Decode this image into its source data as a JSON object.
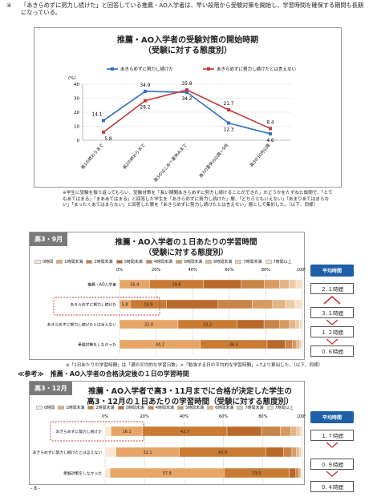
{
  "intro": {
    "number": "④",
    "text": "「あきらめずに努力し続けた」と回答している推薦・AO入学者は、早い段階から受験対策を開始し、学習時間を確保する期間も長期になっている。"
  },
  "chart1": {
    "title": "推薦・AO入学者の受験対策の開始時期",
    "subtitle": "（受験に対する態度別）",
    "unit": "(%)"
  },
  "note1": {
    "lines": [
      "※学生に受験を振り返ってもらい、受験対策を「長い期間あきらめずに努力し続けることができた」かどうかをたずねた設問で、「とてもあてはまる」「まああてはまる」と回答した学生を「あきらめずに努力し続けた」層、「どちらともいえない」「あまりあてはまらない」「まったくあてはまらない」と回答した層を「あきらめずに努力し続けたとは言えない」層として集計した。（以下、同様）"
    ]
  },
  "panel2": {
    "label": "高3・9月",
    "title": "推薦・AO入学者の１日あたりの学習時間",
    "subtitle": "（受験に対する態度別）",
    "avg_header": "平均時間",
    "avg_values": [
      "２.１時間",
      "３.１時間",
      "１.２時間",
      "０.６時間"
    ]
  },
  "note2": "※「1日あたりの学習時間」は「週の平均的な学習日数」×「勉強する日の平均的な学習時間」÷7より算出した。（以下、同様）",
  "ref_title": "≪参考≫　推薦・AO入学者の合格決定後の１日の学習時間",
  "panel3": {
    "label": "高3・12月",
    "title_line1": "推薦・AO入学者で高3・11月までに合格が決定した学生の",
    "title_line2": "高3・12月の１日あたりの学習時間（受験に対する態度別）",
    "avg_header": "平均時間",
    "avg_values": [
      "１.７時間",
      "０.９時間",
      "０.４時間"
    ]
  },
  "footer": "- 8 -",
  "chart_data": [
    {
      "type": "line",
      "title": "推薦・AO入学者の受験対策の開始時期",
      "subtitle": "（受験に対する態度別）",
      "ylabel": "(%)",
      "ylim": [
        0,
        40
      ],
      "y_ticks": [
        0,
        10,
        20,
        30,
        40
      ],
      "legend_position": "top",
      "categories": [
        "高1の終わりまで",
        "高2の終わりまで",
        "高3のはじめ〜夏休みまで",
        "高3の夏休み以降〜9月",
        "高3の10月以降"
      ],
      "series": [
        {
          "name": "あきらめずに努力し続けた",
          "color": "#2f6fc0",
          "values": [
            14.1,
            34.9,
            34.2,
            12.3,
            4.6
          ]
        },
        {
          "name": "あきらめずに努力し続けたとは言えない",
          "color": "#c0393b",
          "values": [
            5.8,
            28.2,
            35.9,
            21.7,
            8.4
          ]
        }
      ]
    },
    {
      "type": "bar",
      "stacked": "horizontal-100",
      "title": "推薦・AO入学者の１日あたりの学習時間",
      "subtitle": "（受験に対する態度別）",
      "x_ticks": [
        "0%",
        "20%",
        "40%",
        "60%",
        "80%",
        "100%"
      ],
      "legend": [
        "0時間",
        "1時間未満",
        "2時間未満",
        "3時間未満",
        "4時間未満",
        "5時間未満",
        "6時間未満",
        "7時間未満",
        "7時間以上"
      ],
      "colors": [
        "#fbe7d2",
        "#e6a567",
        "#c97a33",
        "#b9692a",
        "#c98448",
        "#d79a62",
        "#e2b486",
        "#ecc9a6",
        "#f5dfc6"
      ],
      "categories": [
        "推薦・AO入学者",
        "あきらめずに努力し続けた",
        "あきらめずに努力し続けたとは言えない",
        "受験対策をしなかった"
      ],
      "rows": [
        [
          0,
          16.4,
          29.6,
          20.5,
          12.7,
          8.3,
          5.2,
          3.8,
          3.5
        ],
        [
          0,
          5.8,
          19.9,
          28.2,
          18.6,
          11.2,
          7.1,
          5.0,
          4.2
        ],
        [
          0,
          32.0,
          32.2,
          14.8,
          8.6,
          5.4,
          3.4,
          2.0,
          1.6
        ],
        [
          0,
          44.2,
          36.5,
          9.8,
          4.1,
          2.3,
          1.4,
          0.9,
          0.8
        ]
      ],
      "labels": [
        [
          null,
          "16.4",
          "29.6"
        ],
        [
          null,
          "5.8",
          "19.9"
        ],
        [
          null,
          "32.0",
          "32.2"
        ],
        [
          null,
          "44.2",
          "36.5"
        ]
      ]
    },
    {
      "type": "bar",
      "stacked": "horizontal-100",
      "title": "推薦・AO入学者で高3・11月までに合格が決定した学生の高3・12月の１日あたりの学習時間（受験に対する態度別）",
      "x_ticks": [
        "0%",
        "20%",
        "40%",
        "60%",
        "80%",
        "100%"
      ],
      "legend": [
        "0時間",
        "1時間未満",
        "2時間未満",
        "3時間未満",
        "4時間未満",
        "5時間未満",
        "6時間未満",
        "7時間未満",
        "7時間以上"
      ],
      "colors": [
        "#fbe7d2",
        "#e6a567",
        "#c97a33",
        "#b9692a",
        "#c98448",
        "#d79a62",
        "#e2b486",
        "#ecc9a6",
        "#f5dfc6"
      ],
      "categories": [
        "あきらめずに努力し続けた",
        "あきらめずに努力し続けたとは言えない",
        "受験対策をしなかった"
      ],
      "rows": [
        [
          3.0,
          16.1,
          42.7,
          17.5,
          9.4,
          5.3,
          3.1,
          1.7,
          1.2
        ],
        [
          5.5,
          32.1,
          43.9,
          9.0,
          4.2,
          2.3,
          1.4,
          0.9,
          0.7
        ],
        [
          2.5,
          57.8,
          33.0,
          3.4,
          1.3,
          0.8,
          0.5,
          0.4,
          0.3
        ]
      ],
      "labels": [
        [
          null,
          "16.1",
          "42.7"
        ],
        [
          null,
          "32.1",
          "43.9"
        ],
        [
          null,
          "57.8",
          "33.0"
        ]
      ]
    }
  ]
}
